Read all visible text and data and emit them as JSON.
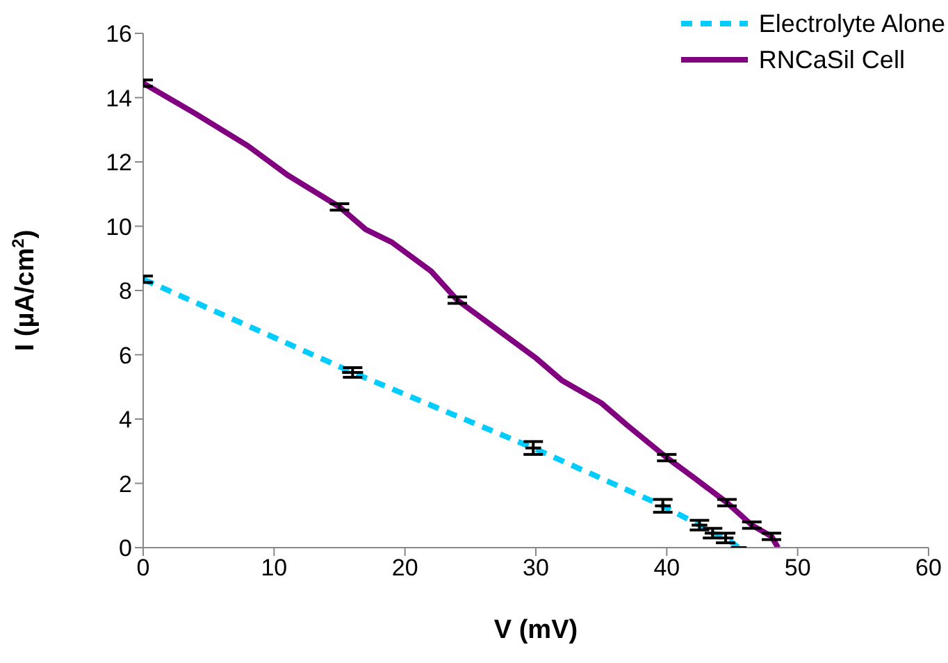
{
  "chart_data": {
    "type": "line",
    "xlabel": "V (mV)",
    "ylabel": "I (µA/cm$^{2}$)",
    "xlim": [
      0,
      60
    ],
    "xticks": [
      0,
      10,
      20,
      30,
      40,
      50,
      60
    ],
    "ylim": [
      0,
      16
    ],
    "yticks": [
      0,
      2,
      4,
      6,
      8,
      10,
      12,
      14,
      16
    ],
    "grid": false,
    "legend": "top right",
    "series": [
      {
        "name": "Electrolyte Alone",
        "color": "#00ccff",
        "line_style": "dashed",
        "marker": "none",
        "x": [
          0,
          16,
          29.8,
          39.7,
          42.5,
          43.5,
          44.5,
          45.5
        ],
        "values": [
          8.35,
          5.45,
          3.1,
          1.3,
          0.7,
          0.45,
          0.3,
          0
        ],
        "errors": [
          0.1,
          0.15,
          0.2,
          0.2,
          0.15,
          0.15,
          0.15,
          null
        ],
        "xerrors": [
          null,
          0.8,
          0.6,
          0.6,
          0.6,
          0.6,
          0.6,
          0.6
        ]
      },
      {
        "name": "RNCaSil Cell",
        "color": "#800080",
        "line_style": "solid",
        "marker": "none",
        "x": [
          0,
          4,
          8,
          11,
          15,
          17,
          19,
          22,
          24,
          27,
          30,
          32,
          35,
          37,
          40,
          42,
          44.6,
          46.5,
          48,
          48.5
        ],
        "values": [
          14.45,
          13.5,
          12.5,
          11.6,
          10.6,
          9.9,
          9.5,
          8.6,
          7.7,
          6.8,
          5.9,
          5.2,
          4.5,
          3.8,
          2.8,
          2.2,
          1.4,
          0.7,
          0.35,
          0
        ],
        "errors": [
          0.1,
          null,
          null,
          null,
          0.1,
          null,
          null,
          null,
          0.1,
          null,
          null,
          null,
          null,
          null,
          0.1,
          null,
          0.1,
          0.1,
          0.1,
          null
        ]
      }
    ]
  }
}
